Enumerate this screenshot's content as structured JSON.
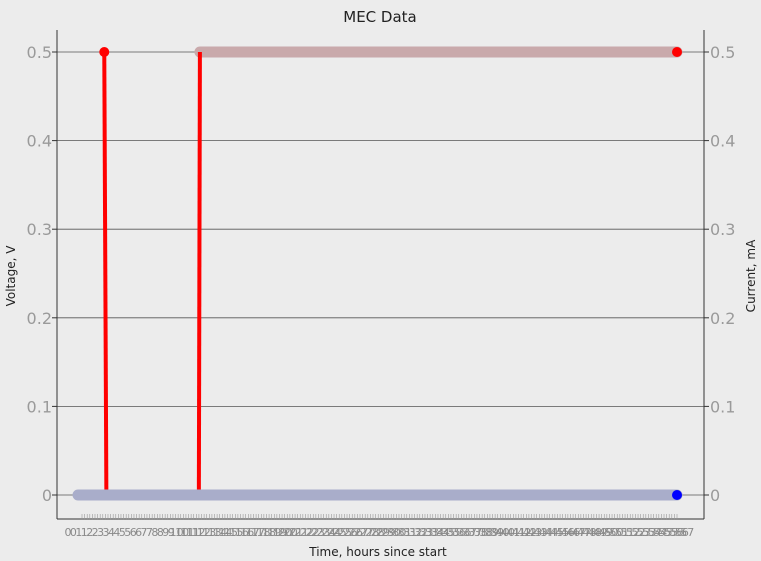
{
  "chart_data": {
    "type": "line",
    "title": "MEC Data",
    "xlabel": "Time, hours since start",
    "ylabel_left": "Voltage, V",
    "ylabel_right": "Current, mA",
    "ylim": [
      0,
      0.5
    ],
    "yticks": [
      0,
      0.1,
      0.2,
      0.3,
      0.4,
      0.5
    ],
    "ytick_labels": [
      "0",
      "0.1",
      "0.2",
      "0.3",
      "0.4",
      "0.5"
    ],
    "xlim": [
      0,
      57
    ],
    "x_tick_count": 230,
    "grid": true,
    "colors": {
      "voltage": "#ff0000",
      "current": "#0000ff",
      "voltage_band": "#c9a9ab",
      "current_band": "#a9adca",
      "grid": "#555555",
      "background": "#ececec"
    },
    "series": [
      {
        "axis": "left",
        "color": "#ff0000",
        "points": [
          [
            2.5,
            0.5
          ],
          [
            2.7,
            0
          ],
          [
            11.5,
            0
          ],
          [
            11.6,
            0.5
          ],
          [
            57,
            0.5
          ]
        ]
      },
      {
        "axis": "right",
        "color": "#0000ff",
        "points": [
          [
            0,
            0
          ],
          [
            57,
            0
          ]
        ]
      }
    ]
  }
}
